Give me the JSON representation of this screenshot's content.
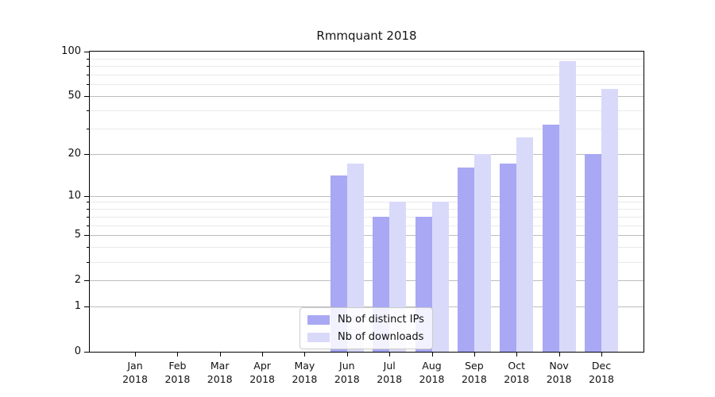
{
  "title": "Rmmquant 2018",
  "chart_data": {
    "type": "bar",
    "title": "Rmmquant 2018",
    "categories": [
      "Jan",
      "Feb",
      "Mar",
      "Apr",
      "May",
      "Jun",
      "Jul",
      "Aug",
      "Sep",
      "Oct",
      "Nov",
      "Dec"
    ],
    "year_label": "2018",
    "series": [
      {
        "name": "Nb of distinct IPs",
        "color": "#a8a8f4",
        "values": [
          0,
          0,
          0,
          0,
          0,
          14,
          7,
          7,
          16,
          17,
          32,
          20
        ]
      },
      {
        "name": "Nb of downloads",
        "color": "#d9d9fa",
        "values": [
          0,
          0,
          0,
          0,
          0,
          17,
          9,
          9,
          20,
          26,
          86,
          56
        ]
      }
    ],
    "y_scale": "log1p",
    "ylim": [
      0,
      100
    ],
    "y_major_ticks": [
      0,
      1,
      2,
      5,
      10,
      20,
      50,
      100
    ],
    "y_minor_ticks": [
      3,
      4,
      6,
      7,
      8,
      9,
      30,
      40,
      60,
      70,
      80,
      90
    ],
    "grid": true,
    "legend_position": "lower center",
    "colors": {
      "major_grid": "#bdbdbd",
      "minor_grid": "#eaeaea",
      "spine": "#000000",
      "background": "#ffffff"
    }
  }
}
